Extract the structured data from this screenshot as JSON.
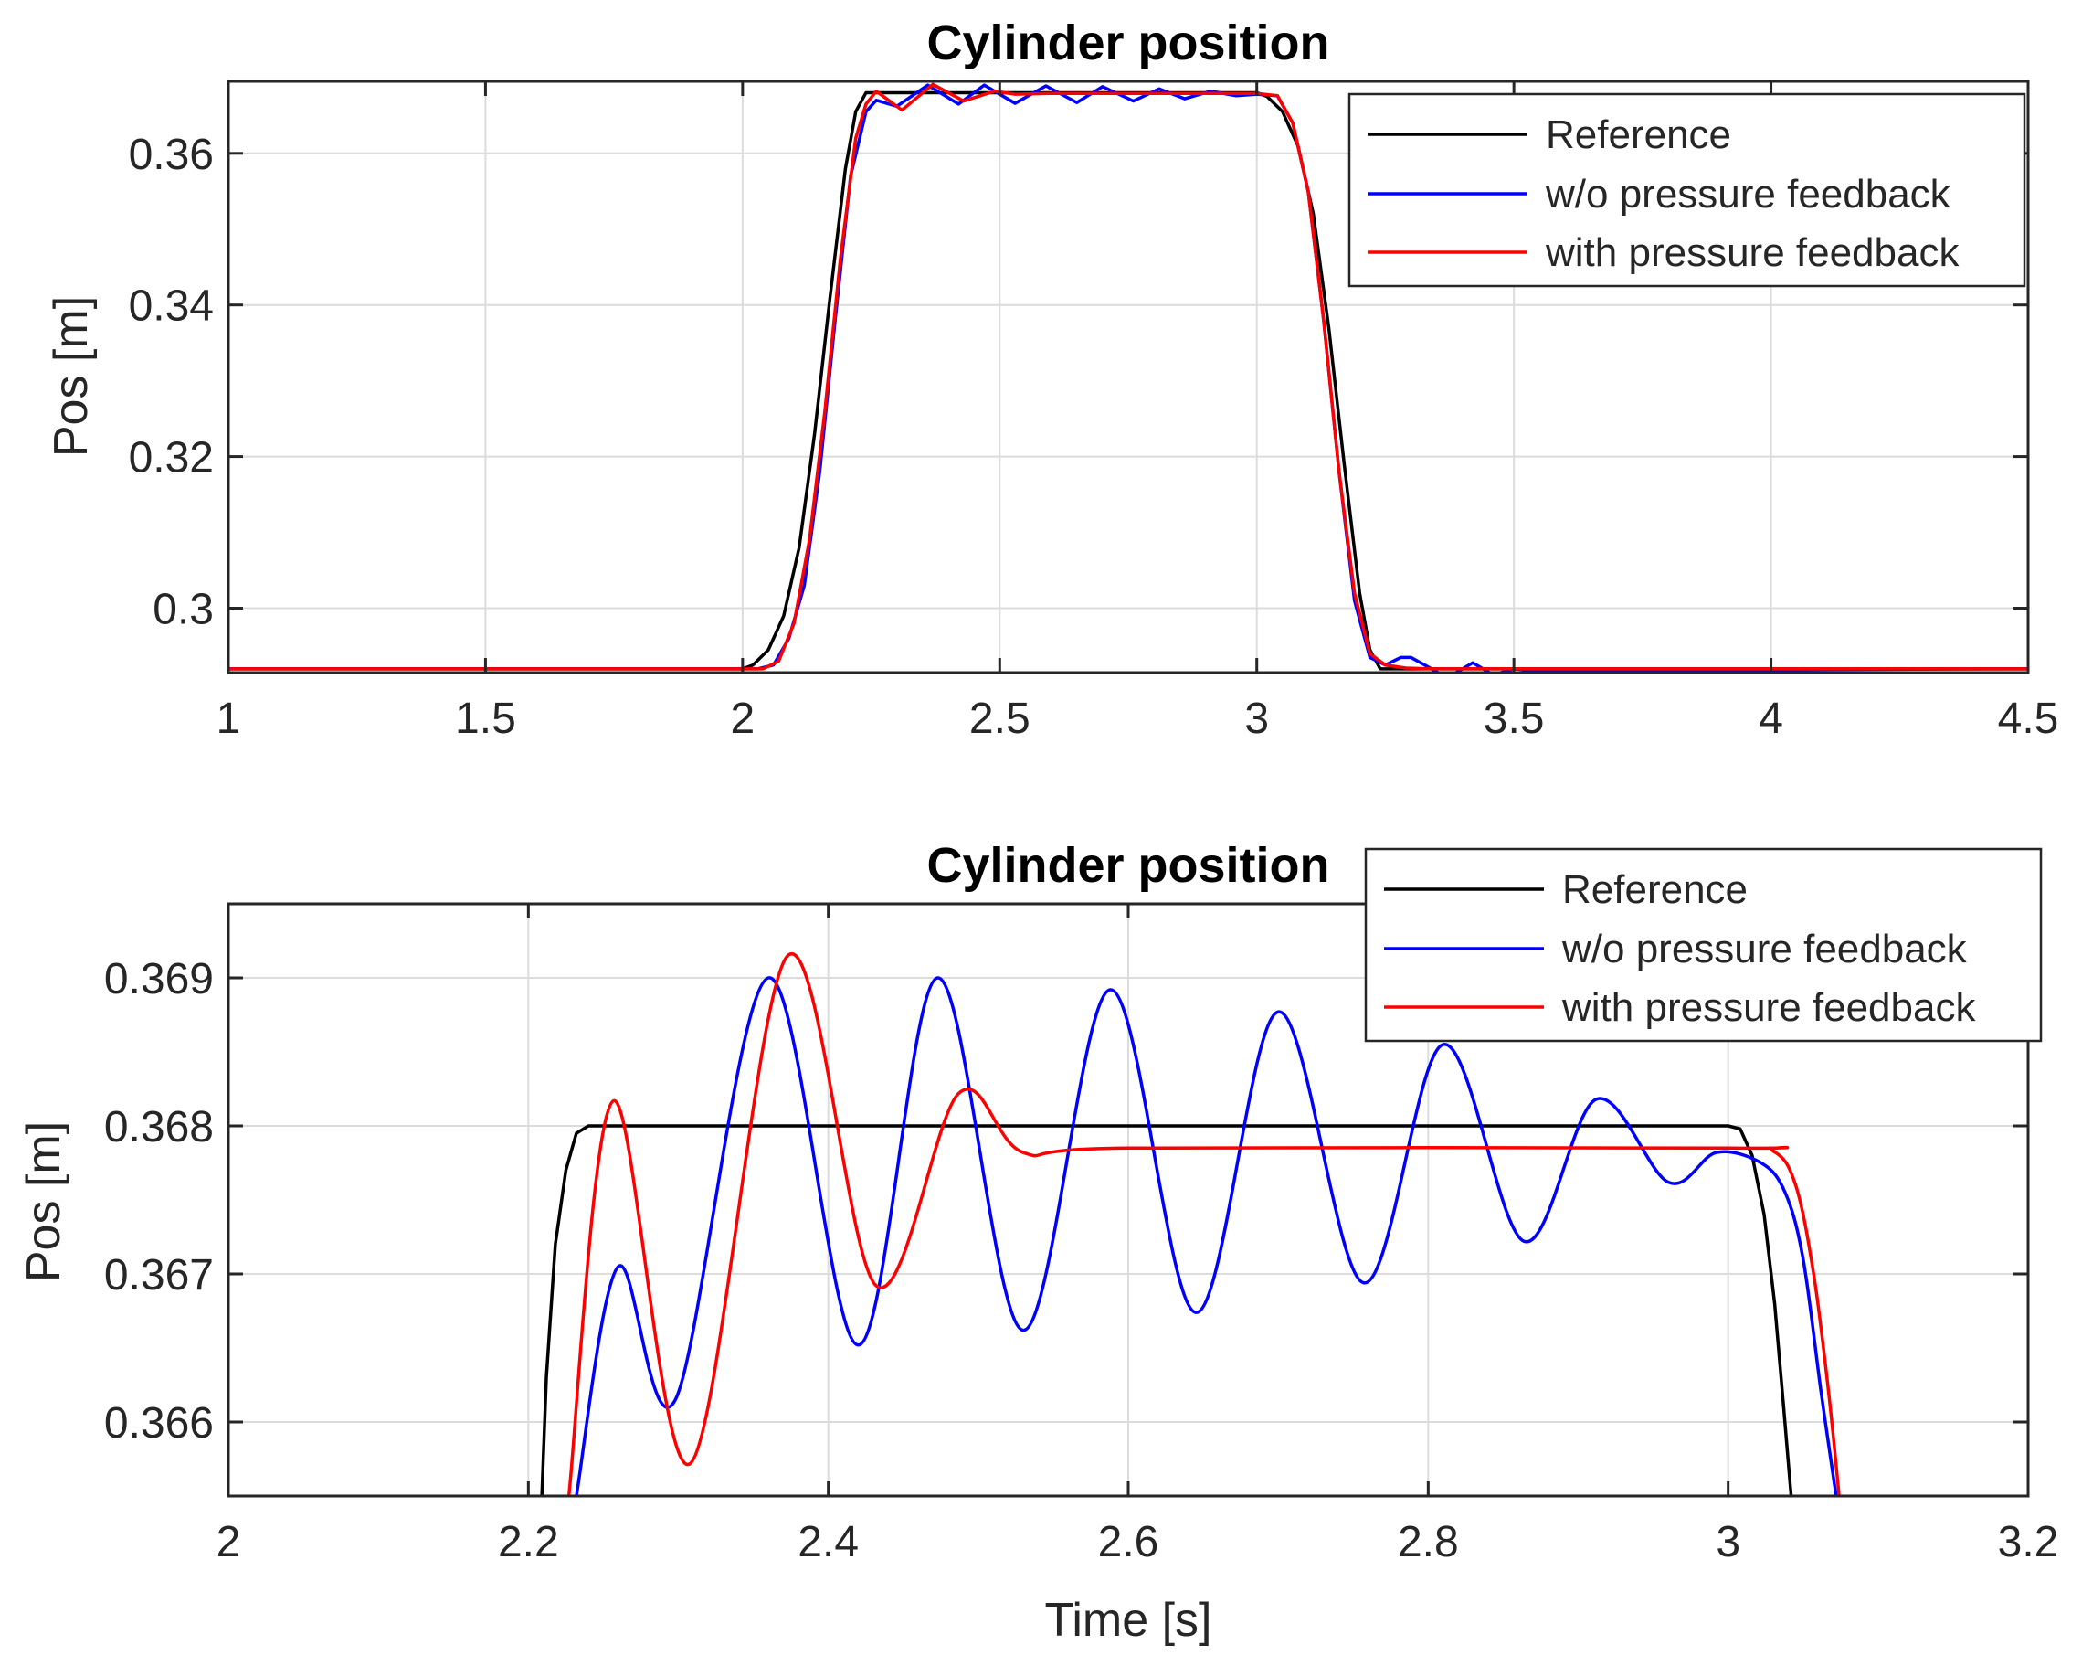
{
  "colors": {
    "reference": "#000000",
    "without": "#0000ff",
    "with": "#ff0000"
  },
  "chart_data": [
    {
      "type": "line",
      "title": "Cylinder position",
      "xlabel": "",
      "ylabel": "Pos [m]",
      "xlim": [
        1,
        4.5
      ],
      "ylim": [
        0.2915,
        0.3695
      ],
      "xticks": [
        1,
        1.5,
        2,
        2.5,
        3,
        3.5,
        4,
        4.5
      ],
      "xtick_labels": [
        "1",
        "1.5",
        "2",
        "2.5",
        "3",
        "3.5",
        "4",
        "4.5"
      ],
      "yticks": [
        0.3,
        0.32,
        0.34,
        0.36
      ],
      "ytick_labels": [
        "0.3",
        "0.32",
        "0.34",
        "0.36"
      ],
      "grid": true,
      "legend_position": "top-right",
      "series": [
        {
          "name": "Reference",
          "color": "#000000",
          "x": [
            1,
            2.0,
            2.02,
            2.05,
            2.08,
            2.11,
            2.14,
            2.17,
            2.2,
            2.22,
            2.24,
            3.0,
            3.02,
            3.05,
            3.08,
            3.11,
            3.14,
            3.17,
            3.2,
            3.22,
            3.24,
            4.5
          ],
          "y": [
            0.292,
            0.292,
            0.2925,
            0.2945,
            0.299,
            0.308,
            0.323,
            0.341,
            0.358,
            0.3655,
            0.368,
            0.368,
            0.3675,
            0.3655,
            0.361,
            0.352,
            0.337,
            0.319,
            0.302,
            0.2945,
            0.292,
            0.292
          ]
        },
        {
          "name": "w/o pressure feedback",
          "color": "#0000ff",
          "x": [
            1,
            2.03,
            2.06,
            2.09,
            2.12,
            2.15,
            2.18,
            2.21,
            2.24,
            2.26,
            2.3,
            2.36,
            2.42,
            2.47,
            2.53,
            2.59,
            2.65,
            2.7,
            2.76,
            2.81,
            2.86,
            2.91,
            2.96,
            3.0,
            3.04,
            3.07,
            3.1,
            3.13,
            3.16,
            3.19,
            3.22,
            3.25,
            3.28,
            3.3,
            3.34,
            3.37,
            3.42,
            3.46,
            3.5,
            3.55,
            3.65,
            4.5
          ],
          "y": [
            0.292,
            0.292,
            0.2925,
            0.296,
            0.303,
            0.318,
            0.338,
            0.357,
            0.3655,
            0.367,
            0.3662,
            0.369,
            0.3665,
            0.369,
            0.3666,
            0.3689,
            0.3667,
            0.3688,
            0.3669,
            0.3685,
            0.3672,
            0.3682,
            0.3676,
            0.3678,
            0.3676,
            0.364,
            0.355,
            0.338,
            0.318,
            0.301,
            0.2935,
            0.2925,
            0.2935,
            0.2935,
            0.292,
            0.2908,
            0.2928,
            0.2912,
            0.292,
            0.2917,
            0.2918,
            0.292
          ]
        },
        {
          "name": "with pressure feedback",
          "color": "#ff0000",
          "x": [
            1,
            2.04,
            2.07,
            2.1,
            2.13,
            2.16,
            2.19,
            2.22,
            2.24,
            2.26,
            2.31,
            2.37,
            2.43,
            2.49,
            2.53,
            2.6,
            3.0,
            3.04,
            3.07,
            3.1,
            3.13,
            3.16,
            3.19,
            3.22,
            3.25,
            3.29,
            3.34,
            4.5
          ],
          "y": [
            0.292,
            0.292,
            0.293,
            0.298,
            0.309,
            0.326,
            0.346,
            0.362,
            0.3665,
            0.3682,
            0.3657,
            0.3691,
            0.3669,
            0.3682,
            0.3678,
            0.3679,
            0.3679,
            0.3676,
            0.364,
            0.355,
            0.338,
            0.318,
            0.302,
            0.294,
            0.2925,
            0.2921,
            0.292,
            0.292
          ]
        }
      ]
    },
    {
      "type": "line",
      "title": "Cylinder position",
      "xlabel": "Time [s]",
      "ylabel": "Pos [m]",
      "xlim": [
        2,
        3.2
      ],
      "ylim": [
        0.3655,
        0.3695
      ],
      "xticks": [
        2,
        2.2,
        2.4,
        2.6,
        2.8,
        3,
        3.2
      ],
      "xtick_labels": [
        "2",
        "2.2",
        "2.4",
        "2.6",
        "2.8",
        "3",
        "3.2"
      ],
      "yticks": [
        0.366,
        0.367,
        0.368,
        0.369
      ],
      "ytick_labels": [
        "0.366",
        "0.367",
        "0.368",
        "0.369"
      ],
      "grid": true,
      "legend_position": "top-right",
      "series": [
        {
          "name": "Reference",
          "color": "#000000",
          "x": [
            2.209,
            2.212,
            2.218,
            2.225,
            2.232,
            2.24,
            2.25,
            3.0,
            3.008,
            3.016,
            3.024,
            3.031,
            3.037,
            3.042
          ],
          "y": [
            0.3655,
            0.3663,
            0.3672,
            0.3677,
            0.36795,
            0.368,
            0.368,
            0.368,
            0.36798,
            0.3678,
            0.3674,
            0.3668,
            0.3661,
            0.3655
          ],
          "curve": "linear"
        },
        {
          "name": "w/o pressure feedback",
          "color": "#0000ff",
          "x": [
            2.232,
            2.26,
            2.298,
            2.36,
            2.42,
            2.473,
            2.53,
            2.588,
            2.645,
            2.7,
            2.757,
            2.81,
            2.864,
            2.912,
            2.96,
            2.992,
            3.022,
            3.038,
            3.05,
            3.062,
            3.072
          ],
          "y": [
            0.3655,
            0.36705,
            0.36615,
            0.369,
            0.36652,
            0.369,
            0.36662,
            0.36892,
            0.36674,
            0.36877,
            0.36694,
            0.36855,
            0.36722,
            0.36818,
            0.36762,
            0.36782,
            0.36775,
            0.36755,
            0.3671,
            0.3662,
            0.3655
          ],
          "curve": "smooth"
        },
        {
          "name": "with pressure feedback",
          "color": "#ff0000",
          "x": [
            2.227,
            2.257,
            2.308,
            2.373,
            2.432,
            2.487,
            2.53,
            2.6,
            3.0,
            3.03,
            3.045,
            3.057,
            3.067,
            3.074
          ],
          "y": [
            0.3655,
            0.36817,
            0.36572,
            0.36915,
            0.36692,
            0.36822,
            0.36782,
            0.36785,
            0.36785,
            0.36783,
            0.3676,
            0.367,
            0.3662,
            0.3655
          ],
          "curve": "smooth"
        }
      ]
    }
  ]
}
